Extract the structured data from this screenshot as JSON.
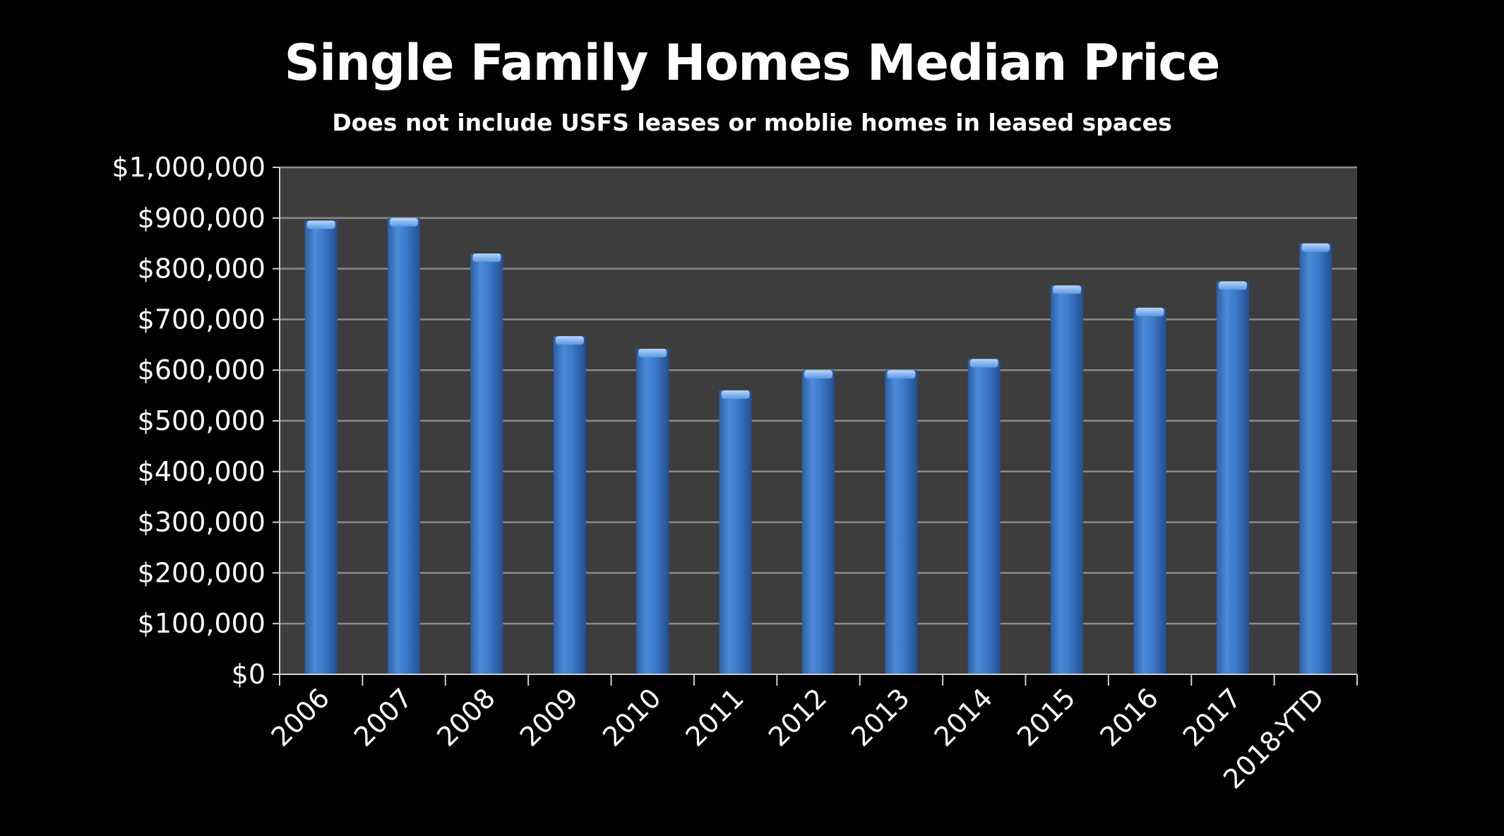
{
  "chart_data": {
    "type": "bar",
    "title": "Single Family Homes Median Price",
    "subtitle": "Does not include USFS leases or moblie homes in leased spaces",
    "xlabel": "",
    "ylabel": "",
    "categories": [
      "2006",
      "2007",
      "2008",
      "2009",
      "2010",
      "2011",
      "2012",
      "2013",
      "2014",
      "2015",
      "2016",
      "2017",
      "2018-YTD"
    ],
    "values": [
      895000,
      900000,
      830000,
      667000,
      642000,
      560000,
      600000,
      600000,
      622000,
      767000,
      723000,
      775000,
      850000
    ],
    "ylim": [
      0,
      1000000
    ],
    "yticks": [
      0,
      100000,
      200000,
      300000,
      400000,
      500000,
      600000,
      700000,
      800000,
      900000,
      1000000
    ],
    "ytick_labels": [
      "$0",
      "$100,000",
      "$200,000",
      "$300,000",
      "$400,000",
      "$500,000",
      "$600,000",
      "$700,000",
      "$800,000",
      "$900,000",
      "$1,000,000"
    ],
    "grid": true,
    "legend": "none",
    "colors": {
      "background": "#000000",
      "plot_area": "#3d3d3d",
      "bar": "#3a76c4",
      "bar_highlight": "#7fb0ee",
      "gridline": "#8a8a8a",
      "text": "#ffffff"
    }
  }
}
